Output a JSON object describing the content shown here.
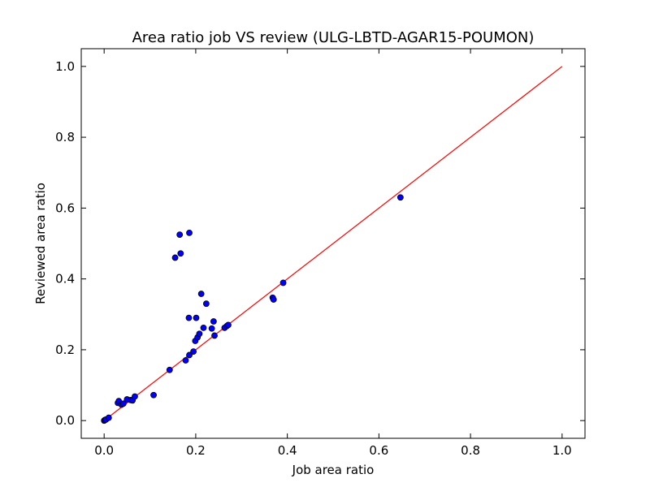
{
  "chart_data": {
    "type": "scatter",
    "title": "Area ratio job VS review (ULG-LBTD-AGAR15-POUMON)",
    "xlabel": "Job area ratio",
    "ylabel": "Reviewed area ratio",
    "xlim": [
      -0.05,
      1.05
    ],
    "ylim": [
      -0.05,
      1.05
    ],
    "x_ticks": [
      "0.0",
      "0.2",
      "0.4",
      "0.6",
      "0.8",
      "1.0"
    ],
    "y_ticks": [
      "0.0",
      "0.2",
      "0.4",
      "0.6",
      "0.8",
      "1.0"
    ],
    "grid": false,
    "point_color": "#0000ff",
    "line_color": "#ff0000",
    "reference_line": {
      "x": [
        0,
        1
      ],
      "y": [
        0,
        1
      ]
    },
    "points": [
      {
        "x": 0.0,
        "y": 0.0
      },
      {
        "x": 0.002,
        "y": 0.002
      },
      {
        "x": 0.004,
        "y": 0.003
      },
      {
        "x": 0.01,
        "y": 0.008
      },
      {
        "x": 0.03,
        "y": 0.05
      },
      {
        "x": 0.032,
        "y": 0.055
      },
      {
        "x": 0.038,
        "y": 0.045
      },
      {
        "x": 0.042,
        "y": 0.048
      },
      {
        "x": 0.05,
        "y": 0.06
      },
      {
        "x": 0.058,
        "y": 0.058
      },
      {
        "x": 0.062,
        "y": 0.057
      },
      {
        "x": 0.067,
        "y": 0.068
      },
      {
        "x": 0.108,
        "y": 0.072
      },
      {
        "x": 0.143,
        "y": 0.143
      },
      {
        "x": 0.155,
        "y": 0.46
      },
      {
        "x": 0.165,
        "y": 0.525
      },
      {
        "x": 0.167,
        "y": 0.472
      },
      {
        "x": 0.178,
        "y": 0.17
      },
      {
        "x": 0.186,
        "y": 0.53
      },
      {
        "x": 0.185,
        "y": 0.29
      },
      {
        "x": 0.186,
        "y": 0.185
      },
      {
        "x": 0.195,
        "y": 0.195
      },
      {
        "x": 0.199,
        "y": 0.225
      },
      {
        "x": 0.201,
        "y": 0.29
      },
      {
        "x": 0.204,
        "y": 0.235
      },
      {
        "x": 0.208,
        "y": 0.245
      },
      {
        "x": 0.212,
        "y": 0.358
      },
      {
        "x": 0.217,
        "y": 0.262
      },
      {
        "x": 0.223,
        "y": 0.33
      },
      {
        "x": 0.235,
        "y": 0.26
      },
      {
        "x": 0.239,
        "y": 0.28
      },
      {
        "x": 0.241,
        "y": 0.24
      },
      {
        "x": 0.263,
        "y": 0.262
      },
      {
        "x": 0.268,
        "y": 0.267
      },
      {
        "x": 0.271,
        "y": 0.27
      },
      {
        "x": 0.368,
        "y": 0.347
      },
      {
        "x": 0.37,
        "y": 0.342
      },
      {
        "x": 0.391,
        "y": 0.389
      },
      {
        "x": 0.647,
        "y": 0.63
      }
    ]
  }
}
